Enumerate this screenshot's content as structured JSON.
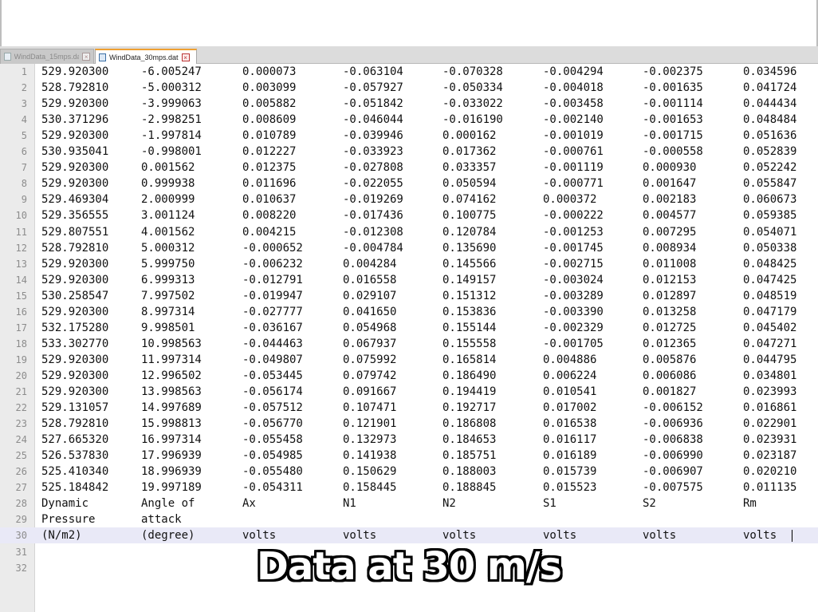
{
  "tabs": [
    {
      "label": "WindData_15mps.dat",
      "active": false
    },
    {
      "label": "WindData_30mps.dat",
      "active": true
    }
  ],
  "lines": [
    [
      "529.920300",
      "-6.005247",
      "0.000073",
      "-0.063104",
      "-0.070328",
      "-0.004294",
      "-0.002375",
      "0.034596"
    ],
    [
      "528.792810",
      "-5.000312",
      "0.003099",
      "-0.057927",
      "-0.050334",
      "-0.004018",
      "-0.001635",
      "0.041724"
    ],
    [
      "529.920300",
      "-3.999063",
      "0.005882",
      "-0.051842",
      "-0.033022",
      "-0.003458",
      "-0.001114",
      "0.044434"
    ],
    [
      "530.371296",
      "-2.998251",
      "0.008609",
      "-0.046044",
      "-0.016190",
      "-0.002140",
      "-0.001653",
      "0.048484"
    ],
    [
      "529.920300",
      "-1.997814",
      "0.010789",
      "-0.039946",
      "0.000162",
      "-0.001019",
      "-0.001715",
      "0.051636"
    ],
    [
      "530.935041",
      "-0.998001",
      "0.012227",
      "-0.033923",
      "0.017362",
      "-0.000761",
      "-0.000558",
      "0.052839"
    ],
    [
      "529.920300",
      "0.001562",
      "0.012375",
      "-0.027808",
      "0.033357",
      "-0.001119",
      "0.000930",
      "0.052242"
    ],
    [
      "529.920300",
      "0.999938",
      "0.011696",
      "-0.022055",
      "0.050594",
      "-0.000771",
      "0.001647",
      "0.055847"
    ],
    [
      "529.469304",
      "2.000999",
      "0.010637",
      "-0.019269",
      "0.074162",
      "0.000372",
      "0.002183",
      "0.060673"
    ],
    [
      "529.356555",
      "3.001124",
      "0.008220",
      "-0.017436",
      "0.100775",
      "-0.000222",
      "0.004577",
      "0.059385"
    ],
    [
      "529.807551",
      "4.001562",
      "0.004215",
      "-0.012308",
      "0.120784",
      "-0.001253",
      "0.007295",
      "0.054071"
    ],
    [
      "528.792810",
      "5.000312",
      "-0.000652",
      "-0.004784",
      "0.135690",
      "-0.001745",
      "0.008934",
      "0.050338"
    ],
    [
      "529.920300",
      "5.999750",
      "-0.006232",
      "0.004284",
      "0.145566",
      "-0.002715",
      "0.011008",
      "0.048425"
    ],
    [
      "529.920300",
      "6.999313",
      "-0.012791",
      "0.016558",
      "0.149157",
      "-0.003024",
      "0.012153",
      "0.047425"
    ],
    [
      "530.258547",
      "7.997502",
      "-0.019947",
      "0.029107",
      "0.151312",
      "-0.003289",
      "0.012897",
      "0.048519"
    ],
    [
      "529.920300",
      "8.997314",
      "-0.027777",
      "0.041650",
      "0.153836",
      "-0.003390",
      "0.013258",
      "0.047179"
    ],
    [
      "532.175280",
      "9.998501",
      "-0.036167",
      "0.054968",
      "0.155144",
      "-0.002329",
      "0.012725",
      "0.045402"
    ],
    [
      "533.302770",
      "10.998563",
      "-0.044463",
      "0.067937",
      "0.155558",
      "-0.001705",
      "0.012365",
      "0.047271"
    ],
    [
      "529.920300",
      "11.997314",
      "-0.049807",
      "0.075992",
      "0.165814",
      "0.004886",
      "0.005876",
      "0.044795"
    ],
    [
      "529.920300",
      "12.996502",
      "-0.053445",
      "0.079742",
      "0.186490",
      "0.006224",
      "0.006086",
      "0.034801"
    ],
    [
      "529.920300",
      "13.998563",
      "-0.056174",
      "0.091667",
      "0.194419",
      "0.010541",
      "0.001827",
      "0.023993"
    ],
    [
      "529.131057",
      "14.997689",
      "-0.057512",
      "0.107471",
      "0.192717",
      "0.017002",
      "-0.006152",
      "0.016861"
    ],
    [
      "528.792810",
      "15.998813",
      "-0.056770",
      "0.121901",
      "0.186808",
      "0.016538",
      "-0.006936",
      "0.022901"
    ],
    [
      "527.665320",
      "16.997314",
      "-0.055458",
      "0.132973",
      "0.184653",
      "0.016117",
      "-0.006838",
      "0.023931"
    ],
    [
      "526.537830",
      "17.996939",
      "-0.054985",
      "0.141938",
      "0.185751",
      "0.016189",
      "-0.006990",
      "0.023187"
    ],
    [
      "525.410340",
      "18.996939",
      "-0.055480",
      "0.150629",
      "0.188003",
      "0.015739",
      "-0.006907",
      "0.020210"
    ],
    [
      "525.184842",
      "19.997189",
      "-0.054311",
      "0.158445",
      "0.188845",
      "0.015523",
      "-0.007575",
      "0.011135"
    ],
    [
      "Dynamic",
      "Angle of",
      "Ax",
      "N1",
      "N2",
      "S1",
      "S2",
      "Rm"
    ],
    [
      "Pressure",
      "attack",
      "",
      "",
      "",
      "",
      "",
      ""
    ],
    [
      "(N/m2)",
      "(degree)",
      "volts",
      "volts",
      "volts",
      "volts",
      "volts",
      "volts"
    ],
    [
      "",
      "",
      "",
      "",
      "",
      "",
      "",
      ""
    ],
    [
      "",
      "",
      "",
      "",
      "",
      "",
      "",
      ""
    ]
  ],
  "line_numbers": [
    "1",
    "2",
    "3",
    "4",
    "5",
    "6",
    "7",
    "8",
    "9",
    "10",
    "11",
    "12",
    "13",
    "14",
    "15",
    "16",
    "17",
    "18",
    "19",
    "20",
    "21",
    "22",
    "23",
    "24",
    "25",
    "26",
    "27",
    "28",
    "29",
    "30",
    "31",
    "32"
  ],
  "current_line": 30,
  "caption": "Data at  30 m/s"
}
